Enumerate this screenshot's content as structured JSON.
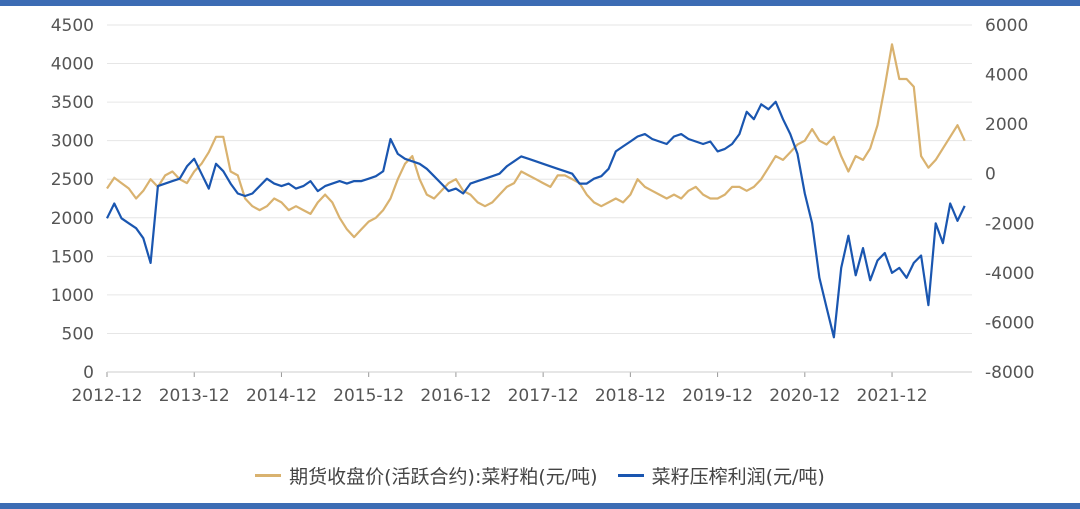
{
  "chart_data": {
    "type": "line",
    "x_ticks": [
      "2012-12",
      "2013-12",
      "2014-12",
      "2015-12",
      "2016-12",
      "2017-12",
      "2018-12",
      "2019-12",
      "2020-12",
      "2021-12"
    ],
    "left_axis": {
      "ylim": [
        0,
        4500
      ],
      "ticks": [
        "0",
        "500",
        "1000",
        "1500",
        "2000",
        "2500",
        "3000",
        "3500",
        "4000",
        "4500"
      ]
    },
    "right_axis": {
      "ylim": [
        -8000,
        6000
      ],
      "ticks": [
        "-8000",
        "-6000",
        "-4000",
        "-2000",
        "0",
        "2000",
        "4000",
        "6000"
      ]
    },
    "grid": true,
    "legend_position": "bottom",
    "series": [
      {
        "name": "期货收盘价(活跃合约):菜籽粕(元/吨)",
        "axis": "left",
        "color": "#d9b26f",
        "points": [
          [
            "2012-12",
            2380
          ],
          [
            "2013-01",
            2520
          ],
          [
            "2013-02",
            2450
          ],
          [
            "2013-03",
            2380
          ],
          [
            "2013-04",
            2250
          ],
          [
            "2013-05",
            2350
          ],
          [
            "2013-06",
            2500
          ],
          [
            "2013-07",
            2400
          ],
          [
            "2013-08",
            2550
          ],
          [
            "2013-09",
            2600
          ],
          [
            "2013-10",
            2500
          ],
          [
            "2013-11",
            2450
          ],
          [
            "2013-12",
            2600
          ],
          [
            "2014-01",
            2700
          ],
          [
            "2014-02",
            2850
          ],
          [
            "2014-03",
            3050
          ],
          [
            "2014-04",
            3050
          ],
          [
            "2014-05",
            2600
          ],
          [
            "2014-06",
            2550
          ],
          [
            "2014-07",
            2250
          ],
          [
            "2014-08",
            2150
          ],
          [
            "2014-09",
            2100
          ],
          [
            "2014-10",
            2150
          ],
          [
            "2014-11",
            2250
          ],
          [
            "2014-12",
            2200
          ],
          [
            "2015-01",
            2100
          ],
          [
            "2015-02",
            2150
          ],
          [
            "2015-03",
            2100
          ],
          [
            "2015-04",
            2050
          ],
          [
            "2015-05",
            2200
          ],
          [
            "2015-06",
            2300
          ],
          [
            "2015-07",
            2200
          ],
          [
            "2015-08",
            2000
          ],
          [
            "2015-09",
            1850
          ],
          [
            "2015-10",
            1750
          ],
          [
            "2015-11",
            1850
          ],
          [
            "2015-12",
            1950
          ],
          [
            "2016-01",
            2000
          ],
          [
            "2016-02",
            2100
          ],
          [
            "2016-03",
            2250
          ],
          [
            "2016-04",
            2500
          ],
          [
            "2016-05",
            2700
          ],
          [
            "2016-06",
            2800
          ],
          [
            "2016-07",
            2500
          ],
          [
            "2016-08",
            2300
          ],
          [
            "2016-09",
            2250
          ],
          [
            "2016-10",
            2350
          ],
          [
            "2016-11",
            2450
          ],
          [
            "2016-12",
            2500
          ],
          [
            "2017-01",
            2350
          ],
          [
            "2017-02",
            2300
          ],
          [
            "2017-03",
            2200
          ],
          [
            "2017-04",
            2150
          ],
          [
            "2017-05",
            2200
          ],
          [
            "2017-06",
            2300
          ],
          [
            "2017-07",
            2400
          ],
          [
            "2017-08",
            2450
          ],
          [
            "2017-09",
            2600
          ],
          [
            "2017-10",
            2550
          ],
          [
            "2017-11",
            2500
          ],
          [
            "2017-12",
            2450
          ],
          [
            "2018-01",
            2400
          ],
          [
            "2018-02",
            2550
          ],
          [
            "2018-03",
            2550
          ],
          [
            "2018-04",
            2500
          ],
          [
            "2018-05",
            2450
          ],
          [
            "2018-06",
            2300
          ],
          [
            "2018-07",
            2200
          ],
          [
            "2018-08",
            2150
          ],
          [
            "2018-09",
            2200
          ],
          [
            "2018-10",
            2250
          ],
          [
            "2018-11",
            2200
          ],
          [
            "2018-12",
            2300
          ],
          [
            "2019-01",
            2500
          ],
          [
            "2019-02",
            2400
          ],
          [
            "2019-03",
            2350
          ],
          [
            "2019-04",
            2300
          ],
          [
            "2019-05",
            2250
          ],
          [
            "2019-06",
            2300
          ],
          [
            "2019-07",
            2250
          ],
          [
            "2019-08",
            2350
          ],
          [
            "2019-09",
            2400
          ],
          [
            "2019-10",
            2300
          ],
          [
            "2019-11",
            2250
          ],
          [
            "2019-12",
            2250
          ],
          [
            "2020-01",
            2300
          ],
          [
            "2020-02",
            2400
          ],
          [
            "2020-03",
            2400
          ],
          [
            "2020-04",
            2350
          ],
          [
            "2020-05",
            2400
          ],
          [
            "2020-06",
            2500
          ],
          [
            "2020-07",
            2650
          ],
          [
            "2020-08",
            2800
          ],
          [
            "2020-09",
            2750
          ],
          [
            "2020-10",
            2850
          ],
          [
            "2020-11",
            2950
          ],
          [
            "2020-12",
            3000
          ],
          [
            "2021-01",
            3150
          ],
          [
            "2021-02",
            3000
          ],
          [
            "2021-03",
            2950
          ],
          [
            "2021-04",
            3050
          ],
          [
            "2021-05",
            2800
          ],
          [
            "2021-06",
            2600
          ],
          [
            "2021-07",
            2800
          ],
          [
            "2021-08",
            2750
          ],
          [
            "2021-09",
            2900
          ],
          [
            "2021-10",
            3200
          ],
          [
            "2021-11",
            3700
          ],
          [
            "2021-12",
            4250
          ],
          [
            "2022-01",
            3800
          ],
          [
            "2022-02",
            3800
          ],
          [
            "2022-03",
            3700
          ],
          [
            "2022-04",
            2800
          ],
          [
            "2022-05",
            2650
          ],
          [
            "2022-06",
            2750
          ],
          [
            "2022-07",
            2900
          ],
          [
            "2022-08",
            3050
          ],
          [
            "2022-09",
            3200
          ],
          [
            "2022-10",
            3000
          ]
        ]
      },
      {
        "name": "菜籽压榨利润(元/吨)",
        "axis": "right",
        "color": "#1a56b0",
        "points": [
          [
            "2012-12",
            -1800
          ],
          [
            "2013-01",
            -1200
          ],
          [
            "2013-02",
            -1800
          ],
          [
            "2013-03",
            -2000
          ],
          [
            "2013-04",
            -2200
          ],
          [
            "2013-05",
            -2600
          ],
          [
            "2013-06",
            -3600
          ],
          [
            "2013-07",
            -500
          ],
          [
            "2013-08",
            -400
          ],
          [
            "2013-09",
            -300
          ],
          [
            "2013-10",
            -200
          ],
          [
            "2013-11",
            300
          ],
          [
            "2013-12",
            600
          ],
          [
            "2014-01",
            0
          ],
          [
            "2014-02",
            -600
          ],
          [
            "2014-03",
            400
          ],
          [
            "2014-04",
            100
          ],
          [
            "2014-05",
            -400
          ],
          [
            "2014-06",
            -800
          ],
          [
            "2014-07",
            -900
          ],
          [
            "2014-08",
            -800
          ],
          [
            "2014-09",
            -500
          ],
          [
            "2014-10",
            -200
          ],
          [
            "2014-11",
            -400
          ],
          [
            "2014-12",
            -500
          ],
          [
            "2015-01",
            -400
          ],
          [
            "2015-02",
            -600
          ],
          [
            "2015-03",
            -500
          ],
          [
            "2015-04",
            -300
          ],
          [
            "2015-05",
            -700
          ],
          [
            "2015-06",
            -500
          ],
          [
            "2015-07",
            -400
          ],
          [
            "2015-08",
            -300
          ],
          [
            "2015-09",
            -400
          ],
          [
            "2015-10",
            -300
          ],
          [
            "2015-11",
            -300
          ],
          [
            "2015-12",
            -200
          ],
          [
            "2016-01",
            -100
          ],
          [
            "2016-02",
            100
          ],
          [
            "2016-03",
            1400
          ],
          [
            "2016-04",
            800
          ],
          [
            "2016-05",
            600
          ],
          [
            "2016-06",
            500
          ],
          [
            "2016-07",
            400
          ],
          [
            "2016-08",
            200
          ],
          [
            "2016-09",
            -100
          ],
          [
            "2016-10",
            -400
          ],
          [
            "2016-11",
            -700
          ],
          [
            "2016-12",
            -600
          ],
          [
            "2017-01",
            -800
          ],
          [
            "2017-02",
            -400
          ],
          [
            "2017-03",
            -300
          ],
          [
            "2017-04",
            -200
          ],
          [
            "2017-05",
            -100
          ],
          [
            "2017-06",
            0
          ],
          [
            "2017-07",
            300
          ],
          [
            "2017-08",
            500
          ],
          [
            "2017-09",
            700
          ],
          [
            "2017-10",
            600
          ],
          [
            "2017-11",
            500
          ],
          [
            "2017-12",
            400
          ],
          [
            "2018-01",
            300
          ],
          [
            "2018-02",
            200
          ],
          [
            "2018-03",
            100
          ],
          [
            "2018-04",
            0
          ],
          [
            "2018-05",
            -400
          ],
          [
            "2018-06",
            -400
          ],
          [
            "2018-07",
            -200
          ],
          [
            "2018-08",
            -100
          ],
          [
            "2018-09",
            200
          ],
          [
            "2018-10",
            900
          ],
          [
            "2018-11",
            1100
          ],
          [
            "2018-12",
            1300
          ],
          [
            "2019-01",
            1500
          ],
          [
            "2019-02",
            1600
          ],
          [
            "2019-03",
            1400
          ],
          [
            "2019-04",
            1300
          ],
          [
            "2019-05",
            1200
          ],
          [
            "2019-06",
            1500
          ],
          [
            "2019-07",
            1600
          ],
          [
            "2019-08",
            1400
          ],
          [
            "2019-09",
            1300
          ],
          [
            "2019-10",
            1200
          ],
          [
            "2019-11",
            1300
          ],
          [
            "2019-12",
            900
          ],
          [
            "2020-01",
            1000
          ],
          [
            "2020-02",
            1200
          ],
          [
            "2020-03",
            1600
          ],
          [
            "2020-04",
            2500
          ],
          [
            "2020-05",
            2200
          ],
          [
            "2020-06",
            2800
          ],
          [
            "2020-07",
            2600
          ],
          [
            "2020-08",
            2900
          ],
          [
            "2020-09",
            2200
          ],
          [
            "2020-10",
            1600
          ],
          [
            "2020-11",
            800
          ],
          [
            "2020-12",
            -800
          ],
          [
            "2021-01",
            -2000
          ],
          [
            "2021-02",
            -4200
          ],
          [
            "2021-03",
            -5400
          ],
          [
            "2021-04",
            -6600
          ],
          [
            "2021-05",
            -3800
          ],
          [
            "2021-06",
            -2500
          ],
          [
            "2021-07",
            -4100
          ],
          [
            "2021-08",
            -3000
          ],
          [
            "2021-09",
            -4300
          ],
          [
            "2021-10",
            -3500
          ],
          [
            "2021-11",
            -3200
          ],
          [
            "2021-12",
            -4000
          ],
          [
            "2022-01",
            -3800
          ],
          [
            "2022-02",
            -4200
          ],
          [
            "2022-03",
            -3600
          ],
          [
            "2022-04",
            -3300
          ],
          [
            "2022-05",
            -5300
          ],
          [
            "2022-06",
            -2000
          ],
          [
            "2022-07",
            -2800
          ],
          [
            "2022-08",
            -1200
          ],
          [
            "2022-09",
            -1900
          ],
          [
            "2022-10",
            -1300
          ]
        ]
      }
    ]
  }
}
